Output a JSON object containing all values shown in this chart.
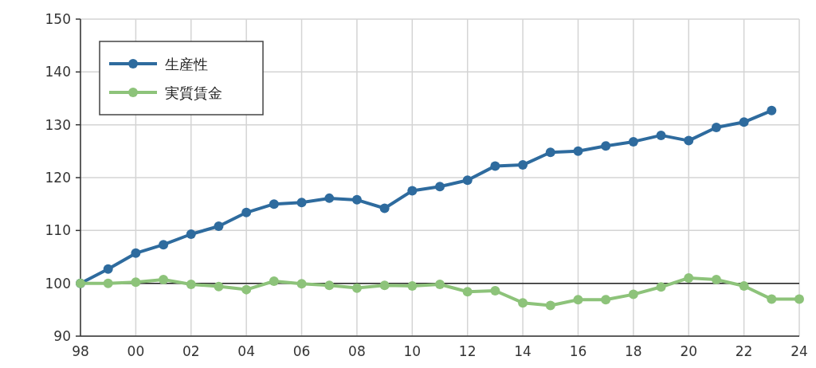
{
  "chart_data": {
    "type": "line",
    "x": [
      1998,
      1999,
      2000,
      2001,
      2002,
      2003,
      2004,
      2005,
      2006,
      2007,
      2008,
      2009,
      2010,
      2011,
      2012,
      2013,
      2014,
      2015,
      2016,
      2017,
      2018,
      2019,
      2020,
      2021,
      2022,
      2023,
      2024
    ],
    "series": [
      {
        "name": "生産性",
        "color": "#2e6b9e",
        "values": [
          100,
          102.7,
          105.7,
          107.3,
          109.3,
          110.8,
          113.4,
          115,
          115.3,
          116.1,
          115.8,
          114.2,
          117.5,
          118.3,
          119.5,
          122.2,
          122.4,
          124.8,
          125,
          126,
          126.8,
          128,
          127,
          129.5,
          130.5,
          132.7,
          null
        ]
      },
      {
        "name": "実質賃金",
        "color": "#8dc37a",
        "values": [
          100,
          100,
          100.2,
          100.7,
          99.8,
          99.4,
          98.8,
          100.4,
          99.9,
          99.6,
          99.1,
          99.6,
          99.5,
          99.8,
          98.4,
          98.6,
          96.3,
          95.8,
          96.9,
          96.9,
          97.9,
          99.3,
          101,
          100.7,
          99.5,
          97,
          97
        ]
      }
    ],
    "xlim": [
      1998,
      2024
    ],
    "xticks": [
      {
        "value": 1998,
        "label": "98"
      },
      {
        "value": 2000,
        "label": "00"
      },
      {
        "value": 2002,
        "label": "02"
      },
      {
        "value": 2004,
        "label": "04"
      },
      {
        "value": 2006,
        "label": "06"
      },
      {
        "value": 2008,
        "label": "08"
      },
      {
        "value": 2010,
        "label": "10"
      },
      {
        "value": 2012,
        "label": "12"
      },
      {
        "value": 2014,
        "label": "14"
      },
      {
        "value": 2016,
        "label": "16"
      },
      {
        "value": 2018,
        "label": "18"
      },
      {
        "value": 2020,
        "label": "20"
      },
      {
        "value": 2022,
        "label": "22"
      },
      {
        "value": 2024,
        "label": "24"
      }
    ],
    "ylim": [
      90,
      150
    ],
    "yticks": [
      90,
      100,
      110,
      120,
      130,
      140,
      150
    ],
    "ref_lines": [
      {
        "axis": "y",
        "value": 100,
        "color": "#222222"
      }
    ],
    "grid": true,
    "legend": "top left",
    "marker": "circle",
    "line_style": "solid"
  }
}
